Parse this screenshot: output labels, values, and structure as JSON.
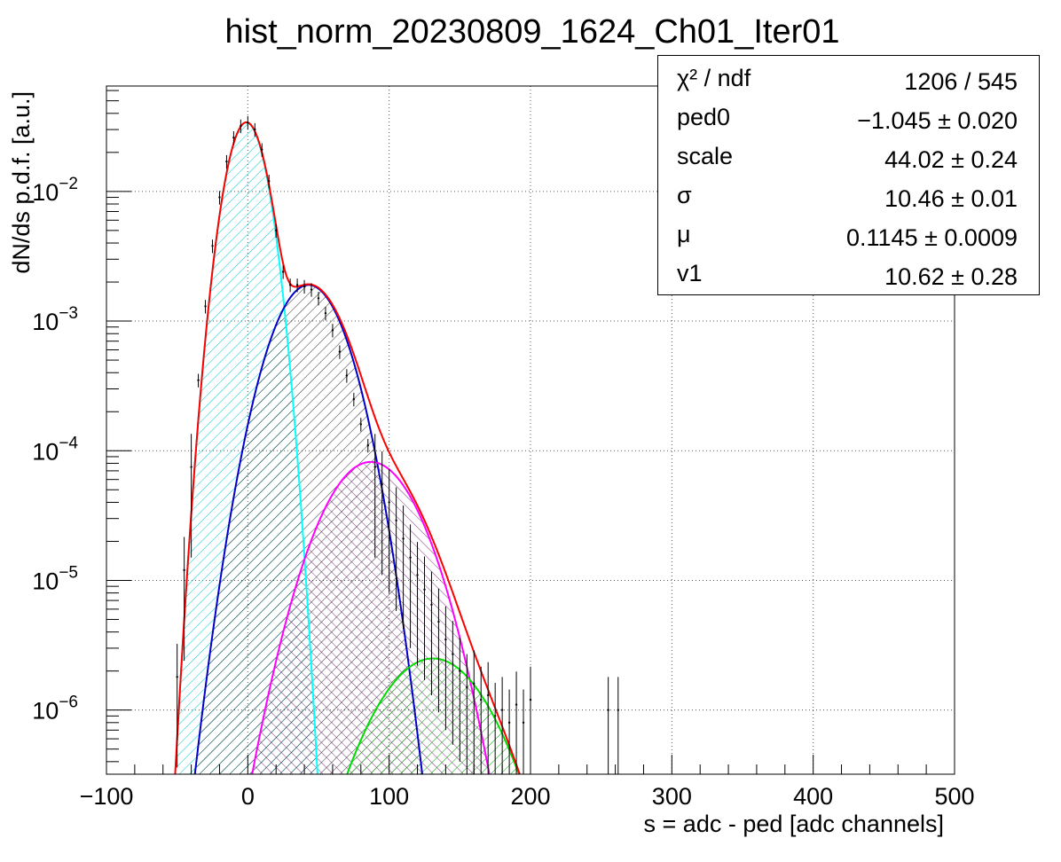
{
  "chart_data": {
    "type": "line",
    "title": "hist_norm_20230809_1624_Ch01_Iter01",
    "xlabel": "s = adc - ped [adc channels]",
    "ylabel": "dN/ds p.d.f. [a.u.]",
    "xlim": [
      -100,
      500
    ],
    "ylim": [
      3.2e-07,
      0.065
    ],
    "yscale": "log",
    "grid": true,
    "x_ticks": [
      "−100",
      "0",
      "100",
      "200",
      "300",
      "400",
      "500"
    ],
    "y_ticks": [
      {
        "base": "10",
        "exp": "−2"
      },
      {
        "base": "10",
        "exp": "−3"
      },
      {
        "base": "10",
        "exp": "−4"
      },
      {
        "base": "10",
        "exp": "−5"
      },
      {
        "base": "10",
        "exp": "−6"
      }
    ],
    "stats_box": {
      "position": "top-right",
      "rows": [
        {
          "label": "χ² / ndf",
          "value": "1206 / 545"
        },
        {
          "label": "ped0",
          "value": "−1.045 ± 0.020"
        },
        {
          "label": "scale",
          "value": "44.02 ± 0.24"
        },
        {
          "label": "σ",
          "value": "10.46 ± 0.01"
        },
        {
          "label": "μ",
          "value": "0.1145 ± 0.0009"
        },
        {
          "label": "v1",
          "value": "10.62 ± 0.28"
        }
      ]
    },
    "model": {
      "ped0": -1.045,
      "scale": 44.02,
      "sigma": 10.46,
      "mu": 0.1145,
      "v1": 10.62
    },
    "series": [
      {
        "color": "#00ffff",
        "hatch": "#00cccc",
        "peak_x": -1,
        "peak_y": 0.034,
        "fill": true
      },
      {
        "color": "#0000cc",
        "hatch": "#000000",
        "peak_x": 43,
        "peak_y": 0.0019,
        "fill": true
      },
      {
        "color": "#ff00ff",
        "hatch": "#660066",
        "peak_x": 87,
        "peak_y": 8.2e-05,
        "fill": true
      },
      {
        "color": "#00dd00",
        "hatch": "#00aa00",
        "peak_x": 131,
        "peak_y": 2.5e-06,
        "fill": true
      },
      {
        "color": "#ff0000",
        "type": "total",
        "fill": false
      }
    ],
    "data_points": {
      "x": [
        -50,
        -45,
        -40,
        -35,
        -30,
        -25,
        -20,
        -15,
        -10,
        -5,
        0,
        5,
        10,
        15,
        20,
        25,
        30,
        35,
        40,
        45,
        50,
        55,
        60,
        65,
        70,
        75,
        80,
        85,
        90,
        95,
        100,
        105,
        110,
        115,
        120,
        125,
        130,
        135,
        140,
        145,
        150,
        155,
        160,
        165,
        170,
        175,
        180,
        185,
        190,
        195,
        200,
        255,
        262
      ],
      "y": [
        1.8e-06,
        1.2e-05,
        7.5e-05,
        0.00035,
        0.0013,
        0.0038,
        0.009,
        0.017,
        0.026,
        0.032,
        0.034,
        0.03,
        0.021,
        0.012,
        0.005,
        0.0024,
        0.0019,
        0.0019,
        0.00185,
        0.00175,
        0.0015,
        0.00115,
        0.00085,
        0.00058,
        0.00038,
        0.00025,
        0.00016,
        0.00011,
        7.5e-05,
        5.5e-05,
        4e-05,
        2.9e-05,
        2.1e-05,
        1.5e-05,
        1.1e-05,
        8.5e-06,
        6.5e-06,
        4.8e-06,
        3.5e-06,
        2.7e-06,
        2e-06,
        1.5e-06,
        1.6e-06,
        1.2e-06,
        1.3e-06,
        9e-07,
        1e-06,
        8e-07,
        1.1e-06,
        8e-07,
        1.2e-06,
        1e-06,
        1e-06
      ]
    }
  }
}
